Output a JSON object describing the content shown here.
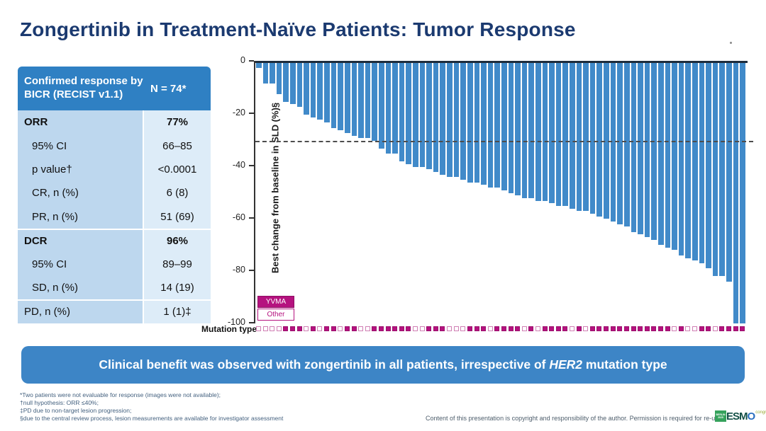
{
  "slide": {
    "title": "Zongertinib in Treatment-Naïve Patients: Tumor Response",
    "banner": {
      "pre": "Clinical benefit was observed with zongertinib in all patients, irrespective of ",
      "em": "HER2",
      "post": " mutation type"
    },
    "footnotes": [
      "*Two patients were not evaluable for response (images were not available);",
      "†null hypothesis: ORR ≤40%;",
      "‡PD due to non-target lesion progression;",
      "§due to the central review process, lesion measurements are available for investigator assessment"
    ],
    "copyright": "Content of this presentation is copyright and responsibility of the author. Permission is required for re-use.",
    "logo": {
      "box": "BERLIN 2025",
      "esm": "ESM",
      "o": "O",
      "congress": "congress"
    }
  },
  "table": {
    "header": {
      "label": "Confirmed response by BICR (RECIST v1.1)",
      "value": "N = 74*"
    },
    "rows": [
      {
        "label": "ORR",
        "value": "77%",
        "bold": true,
        "indent": false,
        "sep": false
      },
      {
        "label": "95% CI",
        "value": "66–85",
        "bold": false,
        "indent": true,
        "sep": false
      },
      {
        "label": "p value†",
        "value": "<0.0001",
        "bold": false,
        "indent": true,
        "sep": false
      },
      {
        "label": "CR, n (%)",
        "value": "6 (8)",
        "bold": false,
        "indent": true,
        "sep": false
      },
      {
        "label": "PR, n (%)",
        "value": "51 (69)",
        "bold": false,
        "indent": true,
        "sep": false
      },
      {
        "label": "DCR",
        "value": "96%",
        "bold": true,
        "indent": false,
        "sep": true
      },
      {
        "label": "95% CI",
        "value": "89–99",
        "bold": false,
        "indent": true,
        "sep": false
      },
      {
        "label": "SD, n (%)",
        "value": "14 (19)",
        "bold": false,
        "indent": true,
        "sep": false
      },
      {
        "label": "PD, n (%)",
        "value": "1 (1)‡",
        "bold": false,
        "indent": false,
        "sep": true
      }
    ]
  },
  "chart_data": {
    "type": "bar",
    "subtype": "waterfall",
    "title": "",
    "xlabel": "Mutation type",
    "ylabel": "Best change from baseline in SLD (%)§",
    "ylim": [
      -100,
      0
    ],
    "yticks": [
      0,
      -20,
      -40,
      -60,
      -80,
      -100
    ],
    "reference_line": -30,
    "grid": false,
    "legend_position": "bottom-left",
    "legend": [
      {
        "label": "YVMA",
        "style": "filled",
        "color": "#b5127f"
      },
      {
        "label": "Other",
        "style": "open",
        "color": "#b5127f"
      }
    ],
    "bar_color": "#418ac9",
    "series": [
      {
        "name": "Best change from baseline in SLD (%)",
        "values": [
          -2,
          -8,
          -8,
          -12,
          -15,
          -16,
          -17,
          -20,
          -21,
          -22,
          -23,
          -25,
          -26,
          -27,
          -28,
          -29,
          -29,
          -30,
          -33,
          -35,
          -35,
          -38,
          -39,
          -40,
          -40,
          -41,
          -42,
          -43,
          -44,
          -44,
          -45,
          -46,
          -46,
          -47,
          -48,
          -48,
          -49,
          -50,
          -51,
          -52,
          -52,
          -53,
          -53,
          -54,
          -55,
          -55,
          -56,
          -57,
          -57,
          -58,
          -59,
          -60,
          -61,
          -62,
          -63,
          -65,
          -66,
          -67,
          -68,
          -70,
          -71,
          -72,
          -74,
          -75,
          -76,
          -77,
          -79,
          -82,
          -82,
          -84,
          -100,
          -100
        ]
      }
    ],
    "mutation_type": [
      "Other",
      "Other",
      "Other",
      "Other",
      "YVMA",
      "YVMA",
      "YVMA",
      "Other",
      "YVMA",
      "Other",
      "YVMA",
      "YVMA",
      "Other",
      "YVMA",
      "YVMA",
      "Other",
      "Other",
      "YVMA",
      "YVMA",
      "YVMA",
      "YVMA",
      "YVMA",
      "YVMA",
      "Other",
      "Other",
      "YVMA",
      "YVMA",
      "YVMA",
      "Other",
      "Other",
      "Other",
      "YVMA",
      "YVMA",
      "YVMA",
      "Other",
      "YVMA",
      "YVMA",
      "YVMA",
      "YVMA",
      "Other",
      "YVMA",
      "Other",
      "YVMA",
      "YVMA",
      "YVMA",
      "YVMA",
      "Other",
      "YVMA",
      "Other",
      "YVMA",
      "YVMA",
      "YVMA",
      "YVMA",
      "YVMA",
      "YVMA",
      "YVMA",
      "YVMA",
      "YVMA",
      "YVMA",
      "YVMA",
      "YVMA",
      "Other",
      "YVMA",
      "Other",
      "Other",
      "YVMA",
      "YVMA",
      "Other",
      "YVMA",
      "YVMA",
      "YVMA",
      "YVMA"
    ]
  },
  "colors": {
    "title": "#1b3a70",
    "table_header_bg": "#2f80c3",
    "table_label_bg": "#bdd7ee",
    "table_value_bg": "#ddecf8",
    "bar": "#418ac9",
    "banner_bg": "#3d85c6",
    "magenta": "#b5127f"
  }
}
